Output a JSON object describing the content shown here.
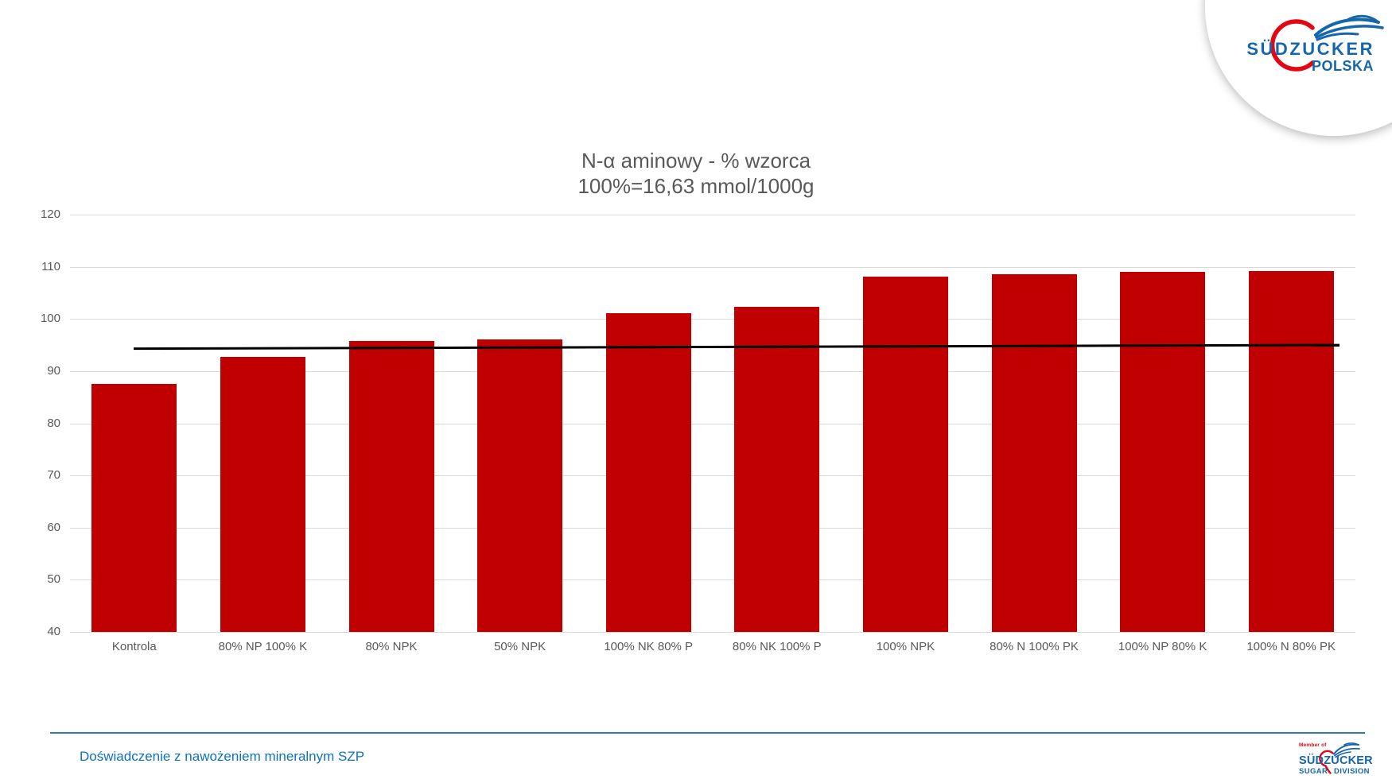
{
  "slide": {
    "background": "#FFFFFF"
  },
  "chart_data": {
    "type": "bar",
    "title": "N-α aminowy - % wzorca",
    "subtitle": "100%=16,63 mmol/1000g",
    "categories": [
      "Kontrola",
      "80% NP 100% K",
      "80% NPK",
      "50% NPK",
      "100% NK 80% P",
      "80% NK 100% P",
      "100% NPK",
      "80% N 100% PK",
      "100% NP 80% K",
      "100% N 80% PK"
    ],
    "values": [
      87.6,
      92.8,
      95.8,
      96.1,
      101.1,
      102.3,
      108.1,
      108.5,
      109.0,
      109.2
    ],
    "xlabel": "",
    "ylabel": "",
    "ylim": [
      40,
      120
    ],
    "ytick_step": 10,
    "yticks": [
      40,
      50,
      60,
      70,
      80,
      90,
      100,
      110,
      120
    ],
    "grid": "horizontal",
    "legend": "none",
    "reference_line": {
      "description": "near-flat black line across bars",
      "start_value": 94.3,
      "end_value": 95.0
    }
  },
  "colors": {
    "bar": "#C00000",
    "grid": "#D9D9D9",
    "axis_text": "#595959",
    "title_text": "#595959",
    "reference_line": "#000000",
    "footer_text": "#0F72BD",
    "footer_line": "#2E79B8",
    "logo_blue": "#1566AD",
    "logo_red": "#E30613"
  },
  "logo_top_right": {
    "brand": "SÜDZUCKER",
    "sub": "POLSKA"
  },
  "footer": {
    "text": "Doświadczenie z nawożeniem mineralnym SZP"
  },
  "logo_bottom_right": {
    "member_of": "Member of",
    "brand": "SÜDZUCKER",
    "sub_left": "SUGAR",
    "sub_right": "DIVISION"
  }
}
